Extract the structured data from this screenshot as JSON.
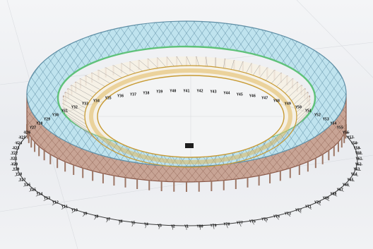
{
  "view": {
    "colors": {
      "background": "#eceef1",
      "outer_truss": "#8b5a4a",
      "roof_ring": "#5f8fa6",
      "roof_underside": "#9fd8ea",
      "green_ring": "#5fc27a",
      "inner_roof": "#c79a33",
      "support_column": "#9c7665",
      "gridline": "#3a3a3a"
    },
    "axis_labels": [
      "Y1",
      "Y2",
      "Y3",
      "Y4",
      "Y5",
      "Y6",
      "Y7",
      "Y8",
      "Y9",
      "Y10",
      "Y11",
      "Y12",
      "Y13",
      "Y14",
      "Y15",
      "Y16",
      "Y17",
      "Y18",
      "Y19",
      "Y20",
      "Y21",
      "Y22",
      "Y23",
      "Y24",
      "Y25",
      "Y26",
      "Y27",
      "Y28",
      "Y29",
      "Y30",
      "Y31",
      "Y32",
      "Y33",
      "Y34",
      "Y35",
      "Y36",
      "Y37",
      "Y38",
      "Y39",
      "Y40",
      "Y41",
      "Y42",
      "Y43",
      "Y44",
      "Y45",
      "Y46",
      "Y47",
      "Y48",
      "Y49",
      "Y50",
      "Y51",
      "Y52",
      "Y53",
      "Y54",
      "Y55",
      "Y56",
      "Y57",
      "Y58",
      "Y59",
      "Y60",
      "Y61",
      "Y62",
      "Y63",
      "Y64",
      "Y65",
      "Y66",
      "Y67",
      "Y68",
      "Y69",
      "Y70",
      "Y71",
      "Y72",
      "Y73",
      "Y74",
      "Y75",
      "Y76",
      "Y77",
      "Y78",
      "Y79",
      "Y80"
    ]
  }
}
